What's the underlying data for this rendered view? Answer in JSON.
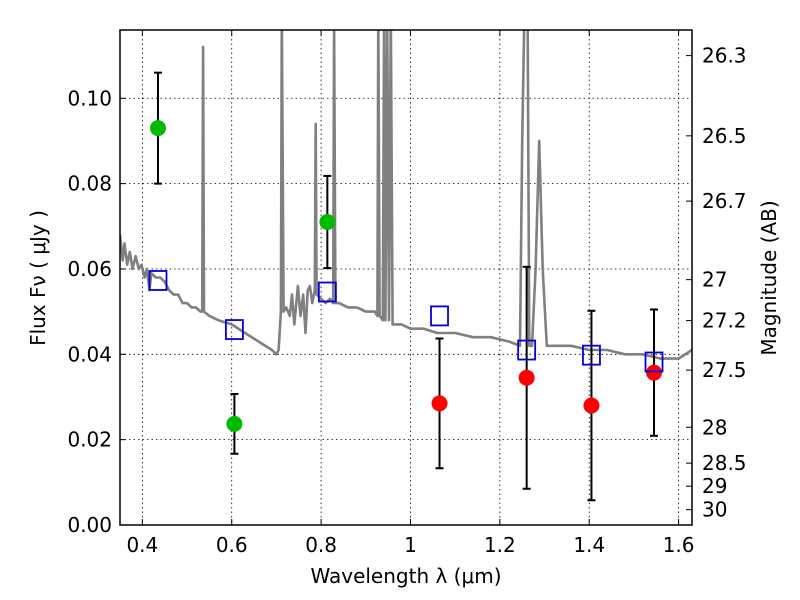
{
  "chart_data": {
    "type": "scatter",
    "xlabel": "Wavelength  λ (μm)",
    "ylabel": "Flux  Fν  ( μJy )",
    "y2label": "Magnitude (AB)",
    "xlim": [
      0.35,
      1.63
    ],
    "ylim": [
      0.0,
      0.116
    ],
    "x_ticks": [
      0.4,
      0.6,
      0.8,
      1.0,
      1.2,
      1.4,
      1.6
    ],
    "x_tick_labels": [
      "0.4",
      "0.6",
      "0.8",
      "1",
      "1.2",
      "1.4",
      "1.6"
    ],
    "y_ticks": [
      0.0,
      0.02,
      0.04,
      0.06,
      0.08,
      0.1
    ],
    "y_tick_labels": [
      "0.00",
      "0.02",
      "0.04",
      "0.06",
      "0.08",
      "0.10"
    ],
    "y2_ticks": [
      {
        "label": "26.3",
        "flux": 0.11
      },
      {
        "label": "26.5",
        "flux": 0.0912
      },
      {
        "label": "26.7",
        "flux": 0.0759
      },
      {
        "label": "27",
        "flux": 0.0575
      },
      {
        "label": "27.2",
        "flux": 0.0479
      },
      {
        "label": "27.5",
        "flux": 0.0363
      },
      {
        "label": "28",
        "flux": 0.0229
      },
      {
        "label": "28.5",
        "flux": 0.0145
      },
      {
        "label": "29",
        "flux": 0.0091
      },
      {
        "label": "30",
        "flux": 0.0036
      }
    ],
    "grid": true,
    "series": [
      {
        "kind": "green-points",
        "color": "#00bb00",
        "points": [
          {
            "x": 0.435,
            "y": 0.093,
            "err": 0.013
          },
          {
            "x": 0.606,
            "y": 0.0237,
            "err": 0.007
          },
          {
            "x": 0.814,
            "y": 0.071,
            "err": 0.0108
          }
        ]
      },
      {
        "kind": "red-points",
        "color": "#ff0000",
        "points": [
          {
            "x": 1.065,
            "y": 0.0285,
            "err": 0.0152
          },
          {
            "x": 1.26,
            "y": 0.0345,
            "err": 0.026
          },
          {
            "x": 1.405,
            "y": 0.028,
            "err": 0.0222
          },
          {
            "x": 1.545,
            "y": 0.0357,
            "err": 0.0148
          }
        ]
      },
      {
        "kind": "blue-squares",
        "color": "#0000dd",
        "points": [
          {
            "x": 0.435,
            "y": 0.0573
          },
          {
            "x": 0.606,
            "y": 0.0458
          },
          {
            "x": 0.814,
            "y": 0.0546
          },
          {
            "x": 1.065,
            "y": 0.049
          },
          {
            "x": 1.26,
            "y": 0.041
          },
          {
            "x": 1.405,
            "y": 0.0398
          },
          {
            "x": 1.545,
            "y": 0.0382
          }
        ]
      },
      {
        "kind": "model-spectrum",
        "color": "#808080",
        "points": [
          [
            0.35,
            0.068
          ],
          [
            0.356,
            0.062
          ],
          [
            0.36,
            0.066
          ],
          [
            0.366,
            0.061
          ],
          [
            0.372,
            0.064
          ],
          [
            0.378,
            0.06
          ],
          [
            0.385,
            0.063
          ],
          [
            0.392,
            0.06
          ],
          [
            0.398,
            0.061
          ],
          [
            0.405,
            0.058
          ],
          [
            0.41,
            0.06
          ],
          [
            0.416,
            0.055
          ],
          [
            0.42,
            0.059
          ],
          [
            0.43,
            0.058
          ],
          [
            0.44,
            0.058
          ],
          [
            0.45,
            0.057
          ],
          [
            0.46,
            0.055
          ],
          [
            0.47,
            0.054
          ],
          [
            0.48,
            0.054
          ],
          [
            0.49,
            0.052
          ],
          [
            0.5,
            0.052
          ],
          [
            0.51,
            0.051
          ],
          [
            0.52,
            0.051
          ],
          [
            0.53,
            0.05
          ],
          [
            0.534,
            0.05
          ],
          [
            0.536,
            0.112
          ],
          [
            0.538,
            0.05
          ],
          [
            0.55,
            0.049
          ],
          [
            0.57,
            0.048
          ],
          [
            0.6,
            0.047
          ],
          [
            0.63,
            0.045
          ],
          [
            0.66,
            0.043
          ],
          [
            0.69,
            0.041
          ],
          [
            0.7,
            0.04
          ],
          [
            0.705,
            0.041
          ],
          [
            0.71,
            0.05
          ],
          [
            0.712,
            0.12
          ],
          [
            0.716,
            0.05
          ],
          [
            0.722,
            0.051
          ],
          [
            0.73,
            0.049
          ],
          [
            0.735,
            0.054
          ],
          [
            0.74,
            0.047
          ],
          [
            0.748,
            0.056
          ],
          [
            0.754,
            0.049
          ],
          [
            0.76,
            0.054
          ],
          [
            0.765,
            0.045
          ],
          [
            0.77,
            0.055
          ],
          [
            0.775,
            0.056
          ],
          [
            0.78,
            0.052
          ],
          [
            0.786,
            0.055
          ],
          [
            0.788,
            0.094
          ],
          [
            0.79,
            0.054
          ],
          [
            0.8,
            0.053
          ],
          [
            0.81,
            0.052
          ],
          [
            0.82,
            0.053
          ],
          [
            0.827,
            0.052
          ],
          [
            0.829,
            0.118
          ],
          [
            0.832,
            0.052
          ],
          [
            0.84,
            0.052
          ],
          [
            0.86,
            0.051
          ],
          [
            0.88,
            0.051
          ],
          [
            0.9,
            0.05
          ],
          [
            0.92,
            0.05
          ],
          [
            0.926,
            0.049
          ],
          [
            0.928,
            0.12
          ],
          [
            0.931,
            0.049
          ],
          [
            0.938,
            0.048
          ],
          [
            0.941,
            0.12
          ],
          [
            0.944,
            0.048
          ],
          [
            0.948,
            0.12
          ],
          [
            0.952,
            0.048
          ],
          [
            0.956,
            0.12
          ],
          [
            0.96,
            0.047
          ],
          [
            0.98,
            0.047
          ],
          [
            1.0,
            0.046
          ],
          [
            1.03,
            0.046
          ],
          [
            1.06,
            0.045
          ],
          [
            1.1,
            0.045
          ],
          [
            1.14,
            0.044
          ],
          [
            1.18,
            0.044
          ],
          [
            1.22,
            0.043
          ],
          [
            1.245,
            0.042
          ],
          [
            1.25,
            0.09
          ],
          [
            1.255,
            0.12
          ],
          [
            1.262,
            0.12
          ],
          [
            1.266,
            0.042
          ],
          [
            1.272,
            0.042
          ],
          [
            1.28,
            0.06
          ],
          [
            1.288,
            0.09
          ],
          [
            1.296,
            0.06
          ],
          [
            1.305,
            0.042
          ],
          [
            1.33,
            0.042
          ],
          [
            1.36,
            0.042
          ],
          [
            1.4,
            0.041
          ],
          [
            1.44,
            0.041
          ],
          [
            1.48,
            0.04
          ],
          [
            1.52,
            0.04
          ],
          [
            1.56,
            0.039
          ],
          [
            1.6,
            0.039
          ],
          [
            1.63,
            0.041
          ]
        ]
      }
    ]
  }
}
